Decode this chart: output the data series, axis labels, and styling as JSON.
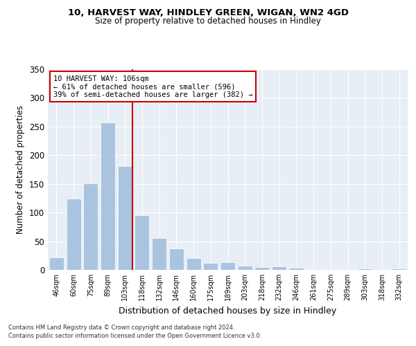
{
  "title1": "10, HARVEST WAY, HINDLEY GREEN, WIGAN, WN2 4GD",
  "title2": "Size of property relative to detached houses in Hindley",
  "xlabel": "Distribution of detached houses by size in Hindley",
  "ylabel": "Number of detached properties",
  "categories": [
    "46sqm",
    "60sqm",
    "75sqm",
    "89sqm",
    "103sqm",
    "118sqm",
    "132sqm",
    "146sqm",
    "160sqm",
    "175sqm",
    "189sqm",
    "203sqm",
    "218sqm",
    "232sqm",
    "246sqm",
    "261sqm",
    "275sqm",
    "289sqm",
    "303sqm",
    "318sqm",
    "332sqm"
  ],
  "values": [
    22,
    124,
    151,
    257,
    181,
    95,
    55,
    38,
    20,
    12,
    13,
    7,
    5,
    6,
    4,
    0,
    0,
    0,
    3,
    0,
    3
  ],
  "bar_color": "#aac4e0",
  "vline_color": "#cc0000",
  "annotation_box_edge_color": "#cc0000",
  "annotation_line1": "10 HARVEST WAY: 106sqm",
  "annotation_line2": "← 61% of detached houses are smaller (596)",
  "annotation_line3": "39% of semi-detached houses are larger (382) →",
  "ylim": [
    0,
    350
  ],
  "yticks": [
    0,
    50,
    100,
    150,
    200,
    250,
    300,
    350
  ],
  "background_color": "#e8eef5",
  "footer1": "Contains HM Land Registry data © Crown copyright and database right 2024.",
  "footer2": "Contains public sector information licensed under the Open Government Licence v3.0."
}
